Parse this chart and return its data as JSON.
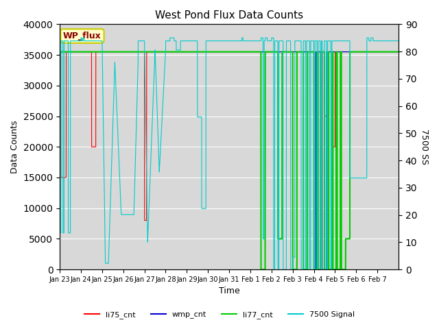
{
  "title": "West Pond Flux Data Counts",
  "ylabel_left": "Data Counts",
  "ylabel_right": "7500 SS",
  "xlabel": "Time",
  "ylim_left": [
    0,
    40000
  ],
  "ylim_right": [
    0,
    90
  ],
  "annotation_text": "WP_flux",
  "annotation_bg": "#ffffcc",
  "annotation_border": "#cccc00",
  "annotation_text_color": "#8b0000",
  "plot_bg": "#d8d8d8",
  "line_colors": {
    "li75_cnt": "#ff0000",
    "wmp_cnt": "#0000cc",
    "li77_cnt": "#00cc00",
    "signal7500": "#00cccc"
  },
  "x_tick_labels": [
    "Jan 23",
    "Jan 24",
    "Jan 25",
    "Jan 26",
    "Jan 27",
    "Jan 28",
    "Jan 29",
    "Jan 30",
    "Jan 31",
    "Feb 1",
    "Feb 2",
    "Feb 3",
    "Feb 4",
    "Feb 5",
    "Feb 6",
    "Feb 7"
  ],
  "figsize": [
    6.4,
    4.8
  ],
  "dpi": 100
}
